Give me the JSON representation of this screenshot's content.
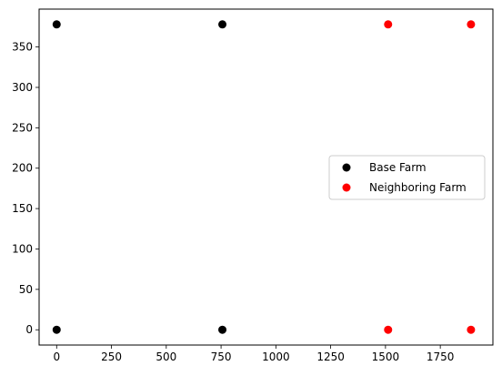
{
  "chart_data": {
    "type": "scatter",
    "title": "",
    "xlabel": "",
    "ylabel": "",
    "xlim": [
      -80,
      1990
    ],
    "ylim": [
      -18.9,
      396.9
    ],
    "x_ticks": [
      0,
      250,
      500,
      750,
      1000,
      1250,
      1500,
      1750
    ],
    "y_ticks": [
      0,
      50,
      100,
      150,
      200,
      250,
      300,
      350
    ],
    "grid": false,
    "legend_position": "center-right",
    "series": [
      {
        "name": "Base Farm",
        "color": "#000000",
        "points": [
          [
            0,
            378
          ],
          [
            756,
            378
          ],
          [
            0,
            0
          ],
          [
            756,
            0
          ]
        ]
      },
      {
        "name": "Neighboring Farm",
        "color": "#ff0000",
        "points": [
          [
            1512,
            378
          ],
          [
            1890,
            378
          ],
          [
            1512,
            0
          ],
          [
            1890,
            0
          ]
        ]
      }
    ]
  }
}
